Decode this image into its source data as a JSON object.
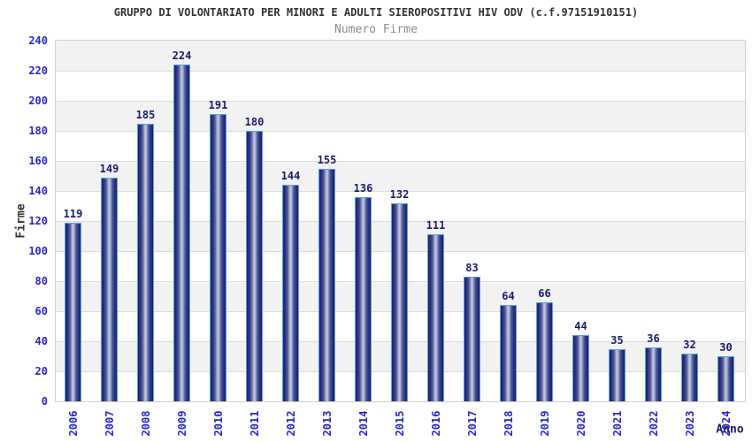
{
  "chart_data": {
    "type": "bar",
    "title": "GRUPPO DI VOLONTARIATO PER MINORI E ADULTI SIEROPOSITIVI HIV ODV (c.f.97151910151)",
    "subtitle": "Numero Firme",
    "xlabel": "Anno",
    "ylabel": "Firme",
    "categories": [
      "2006",
      "2007",
      "2008",
      "2009",
      "2010",
      "2011",
      "2012",
      "2013",
      "2014",
      "2015",
      "2016",
      "2017",
      "2018",
      "2019",
      "2020",
      "2021",
      "2022",
      "2023",
      "2024"
    ],
    "values": [
      119,
      149,
      185,
      224,
      191,
      180,
      144,
      155,
      136,
      132,
      111,
      83,
      64,
      66,
      44,
      35,
      36,
      32,
      30
    ],
    "ylim": [
      0,
      240
    ],
    "ytick_step": 20,
    "legend": "none",
    "grid": "horizontal-bands-alternating",
    "colors": {
      "bar_edge_dark": "#1A2270",
      "bar_center_light": "#C9CFE8",
      "bar_border": "#5B9FE8",
      "axis_tick_label": "#2525CE",
      "value_label": "#1A1A70",
      "title_text": "#333333",
      "subtitle_text": "#8C8C8C",
      "band_gray": "#F2F2F2",
      "band_white": "#FFFFFF",
      "grid_line": "#DCDCDC",
      "plot_border": "#D0D0D0"
    }
  }
}
